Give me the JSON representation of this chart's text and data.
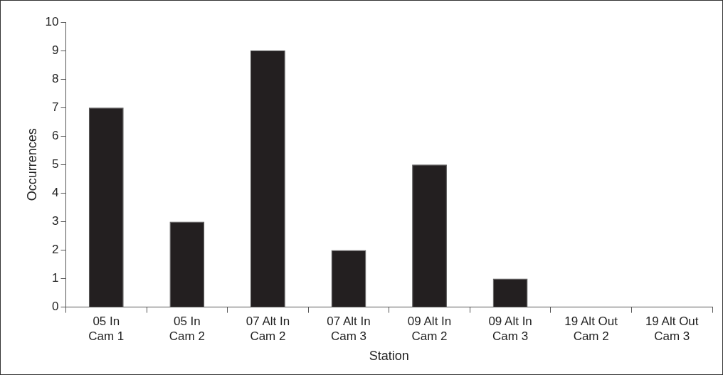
{
  "chart_data": {
    "type": "bar",
    "xlabel": "Station",
    "ylabel": "Occurrences",
    "categories": [
      "05 In\nCam 1",
      "05 In\nCam 2",
      "07 Alt In\nCam 2",
      "07 Alt In\nCam 3",
      "09 Alt In\nCam 2",
      "09 Alt In\nCam 3",
      "19 Alt Out\nCam 2",
      "19 Alt Out\nCam 3"
    ],
    "values": [
      7,
      3,
      9,
      2,
      5,
      1,
      0,
      0
    ],
    "color": "#231f20",
    "ylim": [
      0,
      10
    ],
    "yticks": [
      0,
      1,
      2,
      3,
      4,
      5,
      6,
      7,
      8,
      9,
      10
    ],
    "grid": false,
    "legend": false
  }
}
